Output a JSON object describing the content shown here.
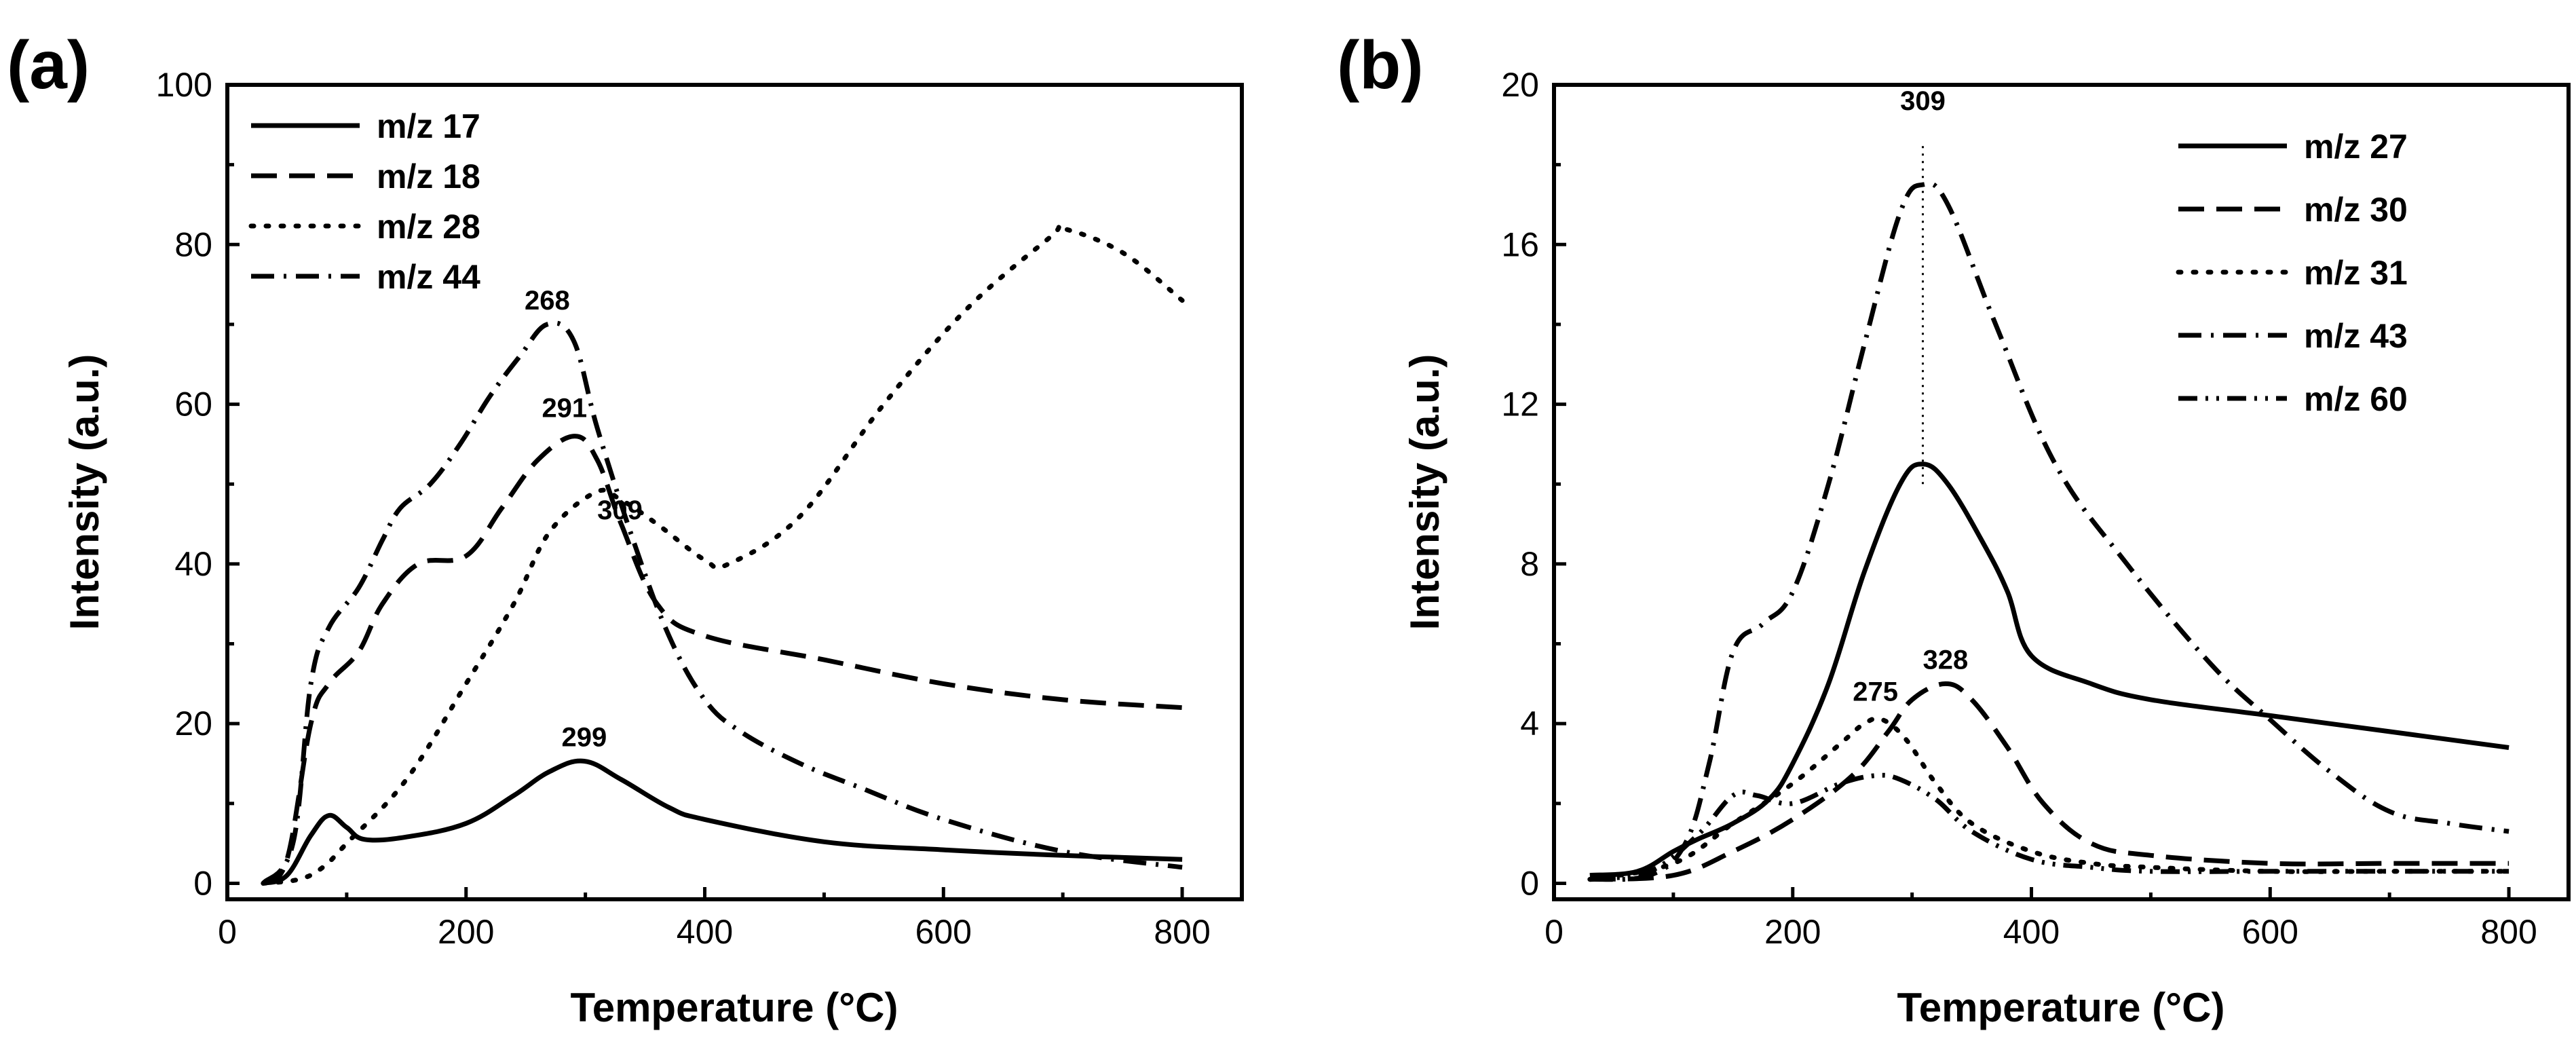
{
  "chart_data": [
    {
      "type": "line",
      "panel_label": "(a)",
      "xlabel": "Temperature (°C)",
      "ylabel": "Intensity (a.u.)",
      "xlim": [
        0,
        850
      ],
      "ylim": [
        -2,
        100
      ],
      "xticks": [
        0,
        200,
        400,
        600,
        800
      ],
      "yticks": [
        0,
        20,
        40,
        60,
        80,
        100
      ],
      "legend_position": "top-left",
      "series": [
        {
          "name": "m/z 17",
          "dash": "solid",
          "x": [
            30,
            50,
            70,
            85,
            100,
            115,
            150,
            200,
            240,
            270,
            299,
            330,
            370,
            400,
            500,
            600,
            700,
            800
          ],
          "y": [
            0,
            1,
            6,
            8.5,
            7,
            5.5,
            5.8,
            7.5,
            11,
            14,
            15.3,
            13,
            9.5,
            8,
            5.2,
            4.2,
            3.5,
            3
          ]
        },
        {
          "name": "m/z 18",
          "dash": "long-dash",
          "x": [
            30,
            50,
            70,
            85,
            110,
            130,
            160,
            200,
            230,
            260,
            291,
            310,
            330,
            360,
            400,
            500,
            600,
            700,
            800
          ],
          "y": [
            0,
            3,
            20,
            25,
            29,
            35,
            40,
            41,
            47,
            53,
            56,
            53,
            45,
            35,
            31,
            28,
            25,
            23,
            22
          ]
        },
        {
          "name": "m/z 28",
          "dash": "dotted",
          "x": [
            30,
            60,
            80,
            100,
            150,
            200,
            240,
            270,
            309,
            330,
            360,
            400,
            420,
            480,
            550,
            620,
            690,
            700,
            750,
            800
          ],
          "y": [
            0,
            0.5,
            2,
            5,
            13,
            25,
            35,
            44,
            49,
            48,
            45,
            40.5,
            40,
            46,
            60,
            72,
            81,
            82,
            79,
            73
          ]
        },
        {
          "name": "m/z 44",
          "dash": "dash-dot",
          "x": [
            30,
            55,
            70,
            85,
            110,
            130,
            145,
            170,
            195,
            220,
            245,
            268,
            290,
            310,
            340,
            370,
            400,
            430,
            480,
            530,
            600,
            700,
            800
          ],
          "y": [
            0,
            5,
            25,
            32,
            37,
            43,
            47,
            50,
            55,
            61,
            66,
            70,
            68,
            57,
            43,
            31,
            23,
            19,
            15,
            12,
            8,
            4,
            2
          ]
        }
      ],
      "annotations": [
        {
          "text": "268",
          "x": 268,
          "y": 70
        },
        {
          "text": "291",
          "x": 291,
          "y": 56
        },
        {
          "text": "309",
          "x": 309,
          "y": 49
        },
        {
          "text": "299",
          "x": 299,
          "y": 15.3
        }
      ]
    },
    {
      "type": "line",
      "panel_label": "(b)",
      "xlabel": "Temperature (°C)",
      "ylabel": "Intensity (a.u.)",
      "xlim": [
        0,
        850
      ],
      "ylim": [
        -0.4,
        20
      ],
      "xticks": [
        0,
        200,
        400,
        600,
        800
      ],
      "yticks": [
        0,
        4,
        8,
        12,
        16,
        20
      ],
      "legend_position": "top-right",
      "series": [
        {
          "name": "m/z 27",
          "dash": "solid",
          "x": [
            30,
            70,
            100,
            120,
            150,
            180,
            200,
            230,
            260,
            290,
            309,
            330,
            360,
            380,
            400,
            450,
            500,
            600,
            700,
            800
          ],
          "y": [
            0.2,
            0.3,
            0.8,
            1.1,
            1.5,
            2.1,
            3,
            5,
            7.8,
            10,
            10.5,
            10,
            8.5,
            7.3,
            5.7,
            5,
            4.6,
            4.2,
            3.8,
            3.4
          ]
        },
        {
          "name": "m/z 30",
          "dash": "long-dash",
          "x": [
            30,
            100,
            150,
            200,
            250,
            280,
            300,
            328,
            350,
            380,
            410,
            450,
            500,
            600,
            700,
            800
          ],
          "y": [
            0.1,
            0.2,
            0.8,
            1.6,
            2.7,
            3.8,
            4.6,
            5,
            4.6,
            3.4,
            2,
            1,
            0.7,
            0.5,
            0.5,
            0.5
          ]
        },
        {
          "name": "m/z 31",
          "dash": "dotted",
          "x": [
            30,
            100,
            150,
            200,
            240,
            260,
            275,
            295,
            320,
            350,
            400,
            450,
            500,
            600,
            700,
            800
          ],
          "y": [
            0.1,
            0.5,
            1.5,
            2.5,
            3.5,
            4,
            4.1,
            3.6,
            2.5,
            1.5,
            0.8,
            0.5,
            0.4,
            0.3,
            0.3,
            0.3
          ]
        },
        {
          "name": "m/z 43",
          "dash": "dash-dot",
          "x": [
            30,
            80,
            110,
            130,
            150,
            175,
            200,
            230,
            260,
            290,
            309,
            330,
            370,
            420,
            480,
            550,
            600,
            650,
            700,
            750,
            800
          ],
          "y": [
            0.1,
            0.2,
            1,
            3,
            5.8,
            6.5,
            7.3,
            10,
            13.5,
            16.8,
            17.5,
            17,
            14,
            10.5,
            8,
            5.5,
            4.1,
            2.8,
            1.8,
            1.5,
            1.3
          ]
        },
        {
          "name": "m/z 60",
          "dash": "dash-dot-dot",
          "x": [
            30,
            80,
            120,
            150,
            170,
            200,
            240,
            270,
            290,
            320,
            350,
            400,
            450,
            500,
            600,
            700,
            800
          ],
          "y": [
            0.1,
            0.3,
            1.2,
            2.2,
            2.2,
            2,
            2.5,
            2.7,
            2.6,
            2.1,
            1.3,
            0.6,
            0.4,
            0.3,
            0.3,
            0.3,
            0.3
          ]
        }
      ],
      "annotations": [
        {
          "text": "309",
          "x": 309,
          "y": 19
        },
        {
          "text": "275",
          "x": 275,
          "y": 4.1
        },
        {
          "text": "328",
          "x": 328,
          "y": 5
        }
      ],
      "reference_line": {
        "x": 309,
        "y_from": 10,
        "y_to": 18.5
      }
    }
  ]
}
